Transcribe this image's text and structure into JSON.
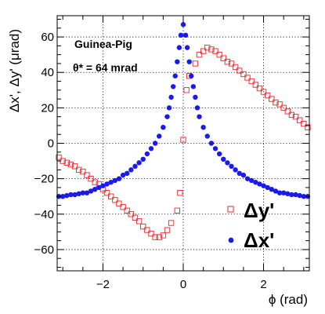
{
  "chart_data": {
    "type": "scatter",
    "xlabel": "ϕ (rad)",
    "ylabel": "Δx', Δy' (μrad)",
    "xlim": [
      -3.14,
      3.14
    ],
    "ylim": [
      -72,
      72
    ],
    "x_ticks": [
      -2,
      0,
      2
    ],
    "x_tick_labels": [
      "−2",
      "0",
      "2"
    ],
    "y_ticks": [
      -60,
      -40,
      -20,
      0,
      20,
      40,
      60
    ],
    "y_tick_labels": [
      "−60",
      "−40",
      "−20",
      "0",
      "20",
      "40",
      "60"
    ],
    "grid": true,
    "legend_position": "bottom-right",
    "annotations": [
      "Guinea-Pig",
      "θ* = 64 mrad"
    ],
    "series": [
      {
        "name": "Δy'",
        "marker": "open-square",
        "color": "#e8383d",
        "points": [
          [
            -3.1,
            -8
          ],
          [
            -3.0,
            -10
          ],
          [
            -2.9,
            -11
          ],
          [
            -2.8,
            -12
          ],
          [
            -2.7,
            -13
          ],
          [
            -2.6,
            -15
          ],
          [
            -2.5,
            -16
          ],
          [
            -2.4,
            -18
          ],
          [
            -2.3,
            -20
          ],
          [
            -2.2,
            -22
          ],
          [
            -2.1,
            -23
          ],
          [
            -2.0,
            -26
          ],
          [
            -1.9,
            -28
          ],
          [
            -1.8,
            -30
          ],
          [
            -1.7,
            -32
          ],
          [
            -1.6,
            -34
          ],
          [
            -1.5,
            -36
          ],
          [
            -1.4,
            -38
          ],
          [
            -1.3,
            -40
          ],
          [
            -1.2,
            -42
          ],
          [
            -1.1,
            -44
          ],
          [
            -1.0,
            -47
          ],
          [
            -0.9,
            -49
          ],
          [
            -0.8,
            -51
          ],
          [
            -0.7,
            -53
          ],
          [
            -0.6,
            -53
          ],
          [
            -0.5,
            -52
          ],
          [
            -0.4,
            -49
          ],
          [
            -0.3,
            -45
          ],
          [
            -0.15,
            -38
          ],
          [
            -0.08,
            -28
          ],
          [
            0.0,
            2
          ],
          [
            0.08,
            30
          ],
          [
            0.15,
            38
          ],
          [
            0.3,
            45
          ],
          [
            0.4,
            50
          ],
          [
            0.5,
            52
          ],
          [
            0.6,
            54
          ],
          [
            0.7,
            53
          ],
          [
            0.8,
            52
          ],
          [
            0.9,
            50
          ],
          [
            1.0,
            48
          ],
          [
            1.1,
            46
          ],
          [
            1.2,
            45
          ],
          [
            1.3,
            43
          ],
          [
            1.4,
            41
          ],
          [
            1.5,
            39
          ],
          [
            1.6,
            37
          ],
          [
            1.7,
            35
          ],
          [
            1.8,
            33
          ],
          [
            1.9,
            31
          ],
          [
            2.0,
            29
          ],
          [
            2.1,
            27
          ],
          [
            2.2,
            25
          ],
          [
            2.3,
            23
          ],
          [
            2.4,
            22
          ],
          [
            2.5,
            20
          ],
          [
            2.6,
            18
          ],
          [
            2.7,
            16
          ],
          [
            2.8,
            15
          ],
          [
            2.9,
            13
          ],
          [
            3.0,
            11
          ],
          [
            3.1,
            9
          ]
        ]
      },
      {
        "name": "Δx'",
        "marker": "filled-circle",
        "color": "#1a1aee",
        "points": [
          [
            -3.1,
            -30
          ],
          [
            -3.0,
            -30
          ],
          [
            -2.9,
            -29.5
          ],
          [
            -2.8,
            -29
          ],
          [
            -2.7,
            -29
          ],
          [
            -2.6,
            -28.5
          ],
          [
            -2.5,
            -28
          ],
          [
            -2.4,
            -28
          ],
          [
            -2.3,
            -27
          ],
          [
            -2.2,
            -26
          ],
          [
            -2.1,
            -25
          ],
          [
            -2.0,
            -24
          ],
          [
            -1.9,
            -23
          ],
          [
            -1.8,
            -22
          ],
          [
            -1.7,
            -21
          ],
          [
            -1.6,
            -20
          ],
          [
            -1.5,
            -18
          ],
          [
            -1.4,
            -17
          ],
          [
            -1.3,
            -15
          ],
          [
            -1.2,
            -13
          ],
          [
            -1.1,
            -11
          ],
          [
            -1.0,
            -9
          ],
          [
            -0.9,
            -6
          ],
          [
            -0.8,
            -3
          ],
          [
            -0.7,
            0
          ],
          [
            -0.6,
            4
          ],
          [
            -0.5,
            9
          ],
          [
            -0.4,
            15
          ],
          [
            -0.35,
            20
          ],
          [
            -0.3,
            26
          ],
          [
            -0.25,
            32
          ],
          [
            -0.2,
            38
          ],
          [
            -0.15,
            46
          ],
          [
            -0.1,
            54
          ],
          [
            -0.06,
            61
          ],
          [
            0.0,
            67
          ],
          [
            0.06,
            61
          ],
          [
            0.1,
            54
          ],
          [
            0.15,
            46
          ],
          [
            0.2,
            38
          ],
          [
            0.25,
            32
          ],
          [
            0.3,
            26
          ],
          [
            0.35,
            20
          ],
          [
            0.4,
            15
          ],
          [
            0.5,
            9
          ],
          [
            0.6,
            4
          ],
          [
            0.7,
            0
          ],
          [
            0.8,
            -3
          ],
          [
            0.9,
            -6
          ],
          [
            1.0,
            -9
          ],
          [
            1.1,
            -11
          ],
          [
            1.2,
            -13
          ],
          [
            1.3,
            -15
          ],
          [
            1.4,
            -17
          ],
          [
            1.5,
            -18
          ],
          [
            1.6,
            -20
          ],
          [
            1.7,
            -21
          ],
          [
            1.8,
            -22
          ],
          [
            1.9,
            -23
          ],
          [
            2.0,
            -24
          ],
          [
            2.1,
            -25
          ],
          [
            2.2,
            -26
          ],
          [
            2.3,
            -27
          ],
          [
            2.4,
            -28
          ],
          [
            2.5,
            -28
          ],
          [
            2.6,
            -28.5
          ],
          [
            2.7,
            -29
          ],
          [
            2.8,
            -29
          ],
          [
            2.9,
            -29.5
          ],
          [
            3.0,
            -30
          ],
          [
            3.1,
            -30
          ]
        ]
      }
    ]
  }
}
